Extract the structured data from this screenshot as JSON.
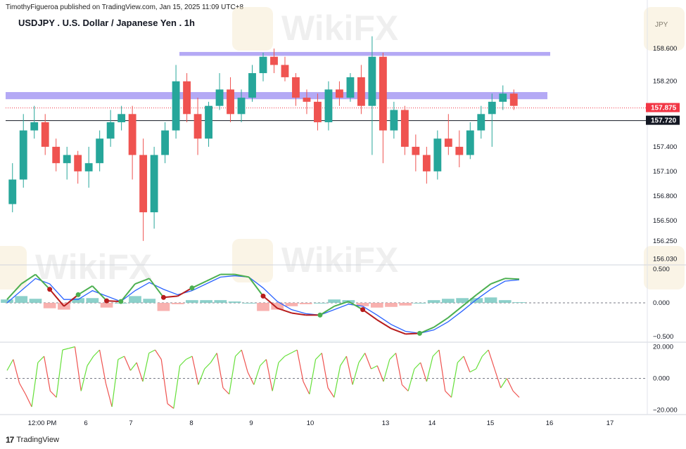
{
  "header": {
    "publisher": "TimothyFigueroa published on TradingView.com, Jan 15, 2025 11:09 UTC+8",
    "title": "USDJPY . U.S. Dollar / Japanese Yen . 1h",
    "currency": "JPY"
  },
  "footer": {
    "brand": "TradingView",
    "logo": "17"
  },
  "watermark": {
    "text": "WikiFX"
  },
  "colors": {
    "up": "#26a69a",
    "down": "#ef5350",
    "resistance": "#9b8cf2",
    "last_price": "#f23645",
    "support_price": "#131722",
    "fast_line": "#2962ff",
    "signal_up": "#4caf50",
    "signal_down": "#b71c1c",
    "osc_up": "#66e03a",
    "osc_down": "#ef5350"
  },
  "chart_data": [
    {
      "type": "candlestick",
      "symbol": "USDJPY",
      "interval": "1h",
      "y_ticks": [
        158.6,
        158.2,
        157.4,
        157.1,
        156.8,
        156.5,
        156.25,
        156.03
      ],
      "ylim": [
        156.0,
        158.85
      ],
      "price_labels": {
        "last": "157.875",
        "level": "157.720"
      },
      "horizontal_levels": [
        {
          "type": "line",
          "value": 157.72,
          "label": "157.720"
        },
        {
          "type": "zone",
          "from": 157.99,
          "to": 158.06
        },
        {
          "type": "zone",
          "from": 158.52,
          "to": 158.55
        }
      ],
      "x_labels": [
        "12:00 PM",
        "6",
        "7",
        "8",
        "9",
        "10",
        "13",
        "14",
        "15",
        "16",
        "17"
      ],
      "ohlc": [
        [
          156.7,
          157.2,
          156.6,
          157.0
        ],
        [
          157.0,
          157.8,
          156.9,
          157.6
        ],
        [
          157.6,
          157.9,
          157.5,
          157.7
        ],
        [
          157.7,
          157.8,
          157.3,
          157.4
        ],
        [
          157.4,
          157.5,
          157.1,
          157.2
        ],
        [
          157.2,
          157.4,
          157.0,
          157.3
        ],
        [
          157.3,
          157.35,
          156.95,
          157.1
        ],
        [
          157.1,
          157.4,
          156.9,
          157.2
        ],
        [
          157.2,
          157.6,
          157.1,
          157.5
        ],
        [
          157.5,
          157.85,
          157.4,
          157.7
        ],
        [
          157.7,
          157.9,
          157.6,
          157.8
        ],
        [
          157.8,
          157.9,
          157.0,
          157.3
        ],
        [
          157.3,
          157.5,
          156.25,
          156.6
        ],
        [
          156.6,
          157.4,
          156.4,
          157.3
        ],
        [
          157.3,
          157.7,
          157.2,
          157.6
        ],
        [
          157.6,
          158.4,
          157.5,
          158.2
        ],
        [
          158.2,
          158.3,
          157.7,
          157.8
        ],
        [
          157.8,
          158.0,
          157.3,
          157.5
        ],
        [
          157.5,
          157.95,
          157.4,
          157.9
        ],
        [
          157.9,
          158.3,
          157.85,
          158.1
        ],
        [
          158.1,
          158.25,
          157.7,
          157.8
        ],
        [
          157.8,
          158.1,
          157.7,
          158.0
        ],
        [
          158.0,
          158.4,
          157.95,
          158.3
        ],
        [
          158.3,
          158.55,
          158.2,
          158.5
        ],
        [
          158.5,
          158.6,
          158.3,
          158.4
        ],
        [
          158.4,
          158.5,
          158.2,
          158.25
        ],
        [
          158.25,
          158.3,
          157.9,
          158.0
        ],
        [
          158.0,
          158.1,
          157.8,
          157.95
        ],
        [
          157.95,
          158.05,
          157.6,
          157.7
        ],
        [
          157.7,
          158.2,
          157.6,
          158.1
        ],
        [
          158.1,
          158.2,
          157.9,
          158.0
        ],
        [
          158.0,
          158.3,
          157.95,
          158.25
        ],
        [
          158.25,
          158.4,
          157.8,
          157.9
        ],
        [
          157.9,
          158.75,
          157.3,
          158.5
        ],
        [
          158.5,
          158.55,
          157.2,
          157.6
        ],
        [
          157.6,
          157.95,
          157.5,
          157.85
        ],
        [
          157.85,
          157.9,
          157.3,
          157.4
        ],
        [
          157.4,
          157.55,
          157.1,
          157.3
        ],
        [
          157.3,
          157.4,
          156.95,
          157.1
        ],
        [
          157.1,
          157.6,
          157.0,
          157.5
        ],
        [
          157.5,
          157.8,
          157.3,
          157.4
        ],
        [
          157.4,
          157.6,
          157.15,
          157.3
        ],
        [
          157.3,
          157.7,
          157.25,
          157.6
        ],
        [
          157.6,
          157.9,
          157.5,
          157.8
        ],
        [
          157.8,
          158.05,
          157.4,
          157.95
        ],
        [
          157.95,
          158.15,
          157.85,
          158.05
        ],
        [
          158.05,
          158.1,
          157.85,
          157.9
        ]
      ]
    },
    {
      "type": "line",
      "name": "MACD",
      "y_ticks": [
        0.5,
        0.0,
        -0.5
      ],
      "y_tick_labels": [
        "0.500",
        "0.000",
        "−0.500"
      ],
      "ylim": [
        -0.55,
        0.55
      ],
      "series": [
        {
          "role": "macd",
          "values": [
            0.05,
            0.28,
            0.42,
            0.2,
            -0.05,
            0.12,
            0.25,
            0.03,
            0.02,
            0.28,
            0.36,
            0.08,
            0.1,
            0.22,
            0.32,
            0.42,
            0.42,
            0.38,
            0.1,
            -0.08,
            -0.15,
            -0.18,
            -0.18,
            -0.05,
            0.02,
            -0.1,
            -0.25,
            -0.38,
            -0.46,
            -0.45,
            -0.36,
            -0.22,
            -0.05,
            0.12,
            0.28,
            0.36,
            0.35
          ]
        },
        {
          "role": "signal",
          "values": [
            0.0,
            0.18,
            0.36,
            0.28,
            0.05,
            0.05,
            0.18,
            0.1,
            0.02,
            0.18,
            0.3,
            0.2,
            0.12,
            0.18,
            0.28,
            0.38,
            0.4,
            0.38,
            0.22,
            0.02,
            -0.1,
            -0.16,
            -0.18,
            -0.1,
            -0.02,
            -0.05,
            -0.18,
            -0.32,
            -0.42,
            -0.45,
            -0.4,
            -0.28,
            -0.12,
            0.05,
            0.2,
            0.32,
            0.34
          ]
        },
        {
          "role": "histogram",
          "values": [
            0.05,
            0.1,
            0.06,
            -0.08,
            -0.1,
            0.07,
            0.07,
            -0.07,
            0.0,
            0.1,
            0.06,
            -0.12,
            -0.02,
            0.04,
            0.04,
            0.04,
            0.02,
            0.0,
            -0.12,
            -0.1,
            -0.05,
            -0.02,
            0.0,
            0.05,
            0.04,
            -0.05,
            -0.07,
            -0.06,
            -0.04,
            0.0,
            0.04,
            0.06,
            0.07,
            0.07,
            0.08,
            0.04,
            0.01
          ]
        }
      ]
    },
    {
      "type": "line",
      "name": "Oscillator",
      "y_ticks": [
        20,
        0,
        -20
      ],
      "y_tick_labels": [
        "20.000",
        "0.000",
        "−20.000"
      ],
      "ylim": [
        -22,
        22
      ],
      "series": [
        {
          "role": "oscillator",
          "values": [
            5,
            12,
            -3,
            -10,
            -18,
            10,
            14,
            -8,
            -12,
            18,
            19,
            20,
            -8,
            8,
            14,
            18,
            -3,
            -18,
            12,
            14,
            5,
            10,
            -2,
            16,
            18,
            12,
            -16,
            -19,
            8,
            12,
            14,
            -4,
            6,
            10,
            16,
            -6,
            -10,
            14,
            18,
            4,
            -4,
            8,
            12,
            -8,
            10,
            14,
            16,
            18,
            -2,
            -10,
            12,
            16,
            -6,
            -12,
            8,
            14,
            -4,
            10,
            16,
            6,
            8,
            -2,
            12,
            16,
            -4,
            -8,
            6,
            10,
            -2,
            14,
            18,
            -8,
            -12,
            10,
            14,
            4,
            6,
            14,
            18,
            6,
            -6,
            0,
            -8,
            -12
          ]
        }
      ]
    }
  ]
}
